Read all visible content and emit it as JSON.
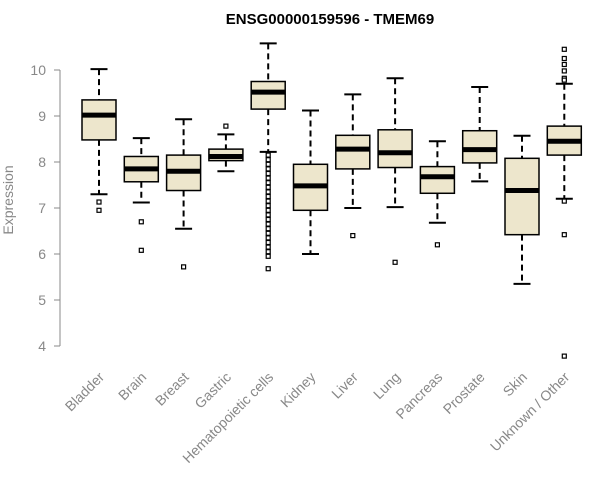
{
  "chart_data": {
    "type": "boxplot",
    "title": "ENSG00000159596 - TMEM69",
    "xlabel": "",
    "ylabel": "Expression",
    "ylim": [
      3.7,
      10.8
    ],
    "yticks": [
      4,
      5,
      6,
      7,
      8,
      9,
      10
    ],
    "box_color": "#ede6cc",
    "categories": [
      "Bladder",
      "Brain",
      "Breast",
      "Gastric",
      "Hematopoietic cells",
      "Kidney",
      "Liver",
      "Lung",
      "Pancreas",
      "Prostate",
      "Skin",
      "Unknown / Other"
    ],
    "boxes": [
      {
        "category": "Bladder",
        "whisker_low": 7.3,
        "q1": 8.48,
        "median": 9.02,
        "q3": 9.35,
        "whisker_high": 10.02,
        "outliers": [
          7.13,
          6.95
        ]
      },
      {
        "category": "Brain",
        "whisker_low": 7.12,
        "q1": 7.57,
        "median": 7.85,
        "q3": 8.12,
        "whisker_high": 8.52,
        "outliers": [
          6.7,
          6.08
        ]
      },
      {
        "category": "Breast",
        "whisker_low": 6.55,
        "q1": 7.38,
        "median": 7.8,
        "q3": 8.15,
        "whisker_high": 8.93,
        "outliers": [
          5.72
        ]
      },
      {
        "category": "Gastric",
        "whisker_low": 7.8,
        "q1": 8.03,
        "median": 8.12,
        "q3": 8.28,
        "whisker_high": 8.6,
        "outliers": [
          8.78
        ]
      },
      {
        "category": "Hematopoietic cells",
        "whisker_low": 8.22,
        "q1": 9.15,
        "median": 9.52,
        "q3": 9.75,
        "whisker_high": 10.58,
        "outliers": [
          8.15,
          8.05,
          7.95,
          7.85,
          7.75,
          7.65,
          7.55,
          7.45,
          7.35,
          7.25,
          7.15,
          7.05,
          6.95,
          6.85,
          6.75,
          6.65,
          6.55,
          6.45,
          6.35,
          6.25,
          6.15,
          6.05,
          5.95,
          5.68
        ]
      },
      {
        "category": "Kidney",
        "whisker_low": 6.0,
        "q1": 6.95,
        "median": 7.48,
        "q3": 7.95,
        "whisker_high": 9.12,
        "outliers": []
      },
      {
        "category": "Liver",
        "whisker_low": 7.0,
        "q1": 7.85,
        "median": 8.28,
        "q3": 8.58,
        "whisker_high": 9.47,
        "outliers": [
          6.4
        ]
      },
      {
        "category": "Lung",
        "whisker_low": 7.02,
        "q1": 7.88,
        "median": 8.2,
        "q3": 8.7,
        "whisker_high": 9.82,
        "outliers": [
          5.82
        ]
      },
      {
        "category": "Pancreas",
        "whisker_low": 6.68,
        "q1": 7.32,
        "median": 7.68,
        "q3": 7.9,
        "whisker_high": 8.45,
        "outliers": [
          6.2
        ]
      },
      {
        "category": "Prostate",
        "whisker_low": 7.58,
        "q1": 7.98,
        "median": 8.27,
        "q3": 8.68,
        "whisker_high": 9.63,
        "outliers": []
      },
      {
        "category": "Skin",
        "whisker_low": 5.35,
        "q1": 6.42,
        "median": 7.38,
        "q3": 8.08,
        "whisker_high": 8.57,
        "outliers": []
      },
      {
        "category": "Unknown / Other",
        "whisker_low": 7.2,
        "q1": 8.15,
        "median": 8.45,
        "q3": 8.78,
        "whisker_high": 9.7,
        "outliers": [
          10.45,
          10.25,
          10.12,
          9.98,
          9.82,
          9.78,
          7.15,
          6.42,
          3.78
        ]
      }
    ]
  }
}
